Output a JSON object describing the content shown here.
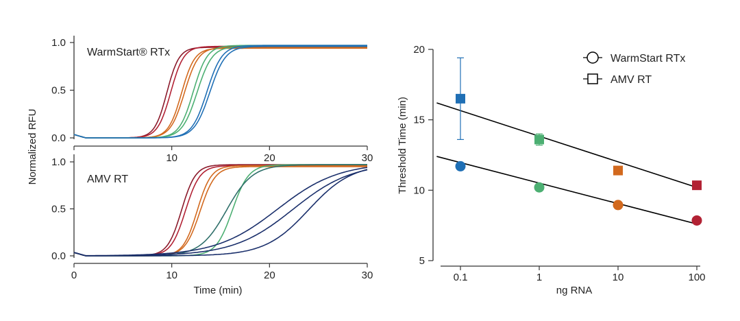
{
  "colors": {
    "blue": "#1f6fb5",
    "green": "#4caf72",
    "orange": "#d2691e",
    "red": "#b22234",
    "darkred": "#8b1a2b",
    "teal": "#2f6f6a",
    "navy": "#1a2f6b",
    "line": "#000000"
  },
  "chart_data": [
    {
      "id": "warmstart-amp",
      "type": "line",
      "title": "WarmStart® RTx",
      "xlabel": "",
      "ylabel": "Normalized RFU",
      "xlim": [
        0,
        30
      ],
      "ylim": [
        0,
        1
      ],
      "x_ticks": [
        "0",
        "10",
        "20",
        "30"
      ],
      "y_ticks": [
        "0.0",
        "0.5",
        "1.0"
      ],
      "series": [
        {
          "color": "darkred",
          "midpoint": 9.5,
          "k": 1.6,
          "plateau": 0.95
        },
        {
          "color": "red",
          "midpoint": 9.9,
          "k": 1.5,
          "plateau": 0.96
        },
        {
          "color": "orange",
          "midpoint": 11.0,
          "k": 1.5,
          "plateau": 0.94
        },
        {
          "color": "orange",
          "midpoint": 11.3,
          "k": 1.4,
          "plateau": 0.95
        },
        {
          "color": "green",
          "midpoint": 12.2,
          "k": 1.4,
          "plateau": 0.97
        },
        {
          "color": "green",
          "midpoint": 12.6,
          "k": 1.3,
          "plateau": 0.96
        },
        {
          "color": "blue",
          "midpoint": 13.6,
          "k": 1.3,
          "plateau": 0.97
        },
        {
          "color": "blue",
          "midpoint": 13.9,
          "k": 1.25,
          "plateau": 0.96
        }
      ]
    },
    {
      "id": "amv-amp",
      "type": "line",
      "title": "AMV RT",
      "xlabel": "Time (min)",
      "ylabel": "",
      "xlim": [
        0,
        30
      ],
      "ylim": [
        0,
        1
      ],
      "x_ticks": [
        "0",
        "10",
        "20",
        "30"
      ],
      "y_ticks": [
        "0.0",
        "0.5",
        "1.0"
      ],
      "series": [
        {
          "color": "darkred",
          "midpoint": 11.0,
          "k": 1.4,
          "plateau": 0.97
        },
        {
          "color": "red",
          "midpoint": 11.4,
          "k": 1.35,
          "plateau": 0.96
        },
        {
          "color": "orange",
          "midpoint": 12.6,
          "k": 1.4,
          "plateau": 0.96
        },
        {
          "color": "orange",
          "midpoint": 12.9,
          "k": 1.3,
          "plateau": 0.95
        },
        {
          "color": "green",
          "midpoint": 16.2,
          "k": 1.2,
          "plateau": 0.97
        },
        {
          "color": "teal",
          "midpoint": 15.6,
          "k": 0.75,
          "plateau": 0.97
        },
        {
          "color": "navy",
          "midpoint": 20.8,
          "k": 0.32,
          "plateau": 0.99
        },
        {
          "color": "navy",
          "midpoint": 22.4,
          "k": 0.33,
          "plateau": 0.99
        },
        {
          "color": "navy",
          "midpoint": 24.0,
          "k": 0.45,
          "plateau": 0.98
        }
      ]
    },
    {
      "id": "threshold",
      "type": "scatter",
      "xlabel": "ng RNA",
      "ylabel": "Threshold Time (min)",
      "x_scale": "log",
      "xlim": [
        0.05,
        110
      ],
      "ylim": [
        5,
        20
      ],
      "x_ticks": [
        "0.1",
        "1",
        "10",
        "100"
      ],
      "y_ticks": [
        "5",
        "10",
        "15",
        "20"
      ],
      "legend": {
        "position": "top-right",
        "items": [
          {
            "label": "WarmStart RTx",
            "marker": "circle"
          },
          {
            "label": "AMV RT",
            "marker": "square"
          }
        ]
      },
      "series": [
        {
          "name": "WarmStart RTx",
          "marker": "circle",
          "points": [
            {
              "x": 0.1,
              "y": 11.7,
              "color": "blue"
            },
            {
              "x": 1,
              "y": 10.2,
              "color": "green"
            },
            {
              "x": 10,
              "y": 8.95,
              "color": "orange"
            },
            {
              "x": 100,
              "y": 7.85,
              "color": "red"
            }
          ],
          "fit": {
            "from": [
              0.05,
              12.4
            ],
            "to": [
              100,
              7.6
            ]
          }
        },
        {
          "name": "AMV RT",
          "marker": "square",
          "points": [
            {
              "x": 0.1,
              "y": 16.5,
              "err": 2.9,
              "color": "blue"
            },
            {
              "x": 1,
              "y": 13.6,
              "err": 0.4,
              "color": "green"
            },
            {
              "x": 10,
              "y": 11.4,
              "color": "orange"
            },
            {
              "x": 100,
              "y": 10.35,
              "color": "red"
            }
          ],
          "fit": {
            "from": [
              0.05,
              16.2
            ],
            "to": [
              100,
              10.2
            ]
          }
        }
      ]
    }
  ]
}
